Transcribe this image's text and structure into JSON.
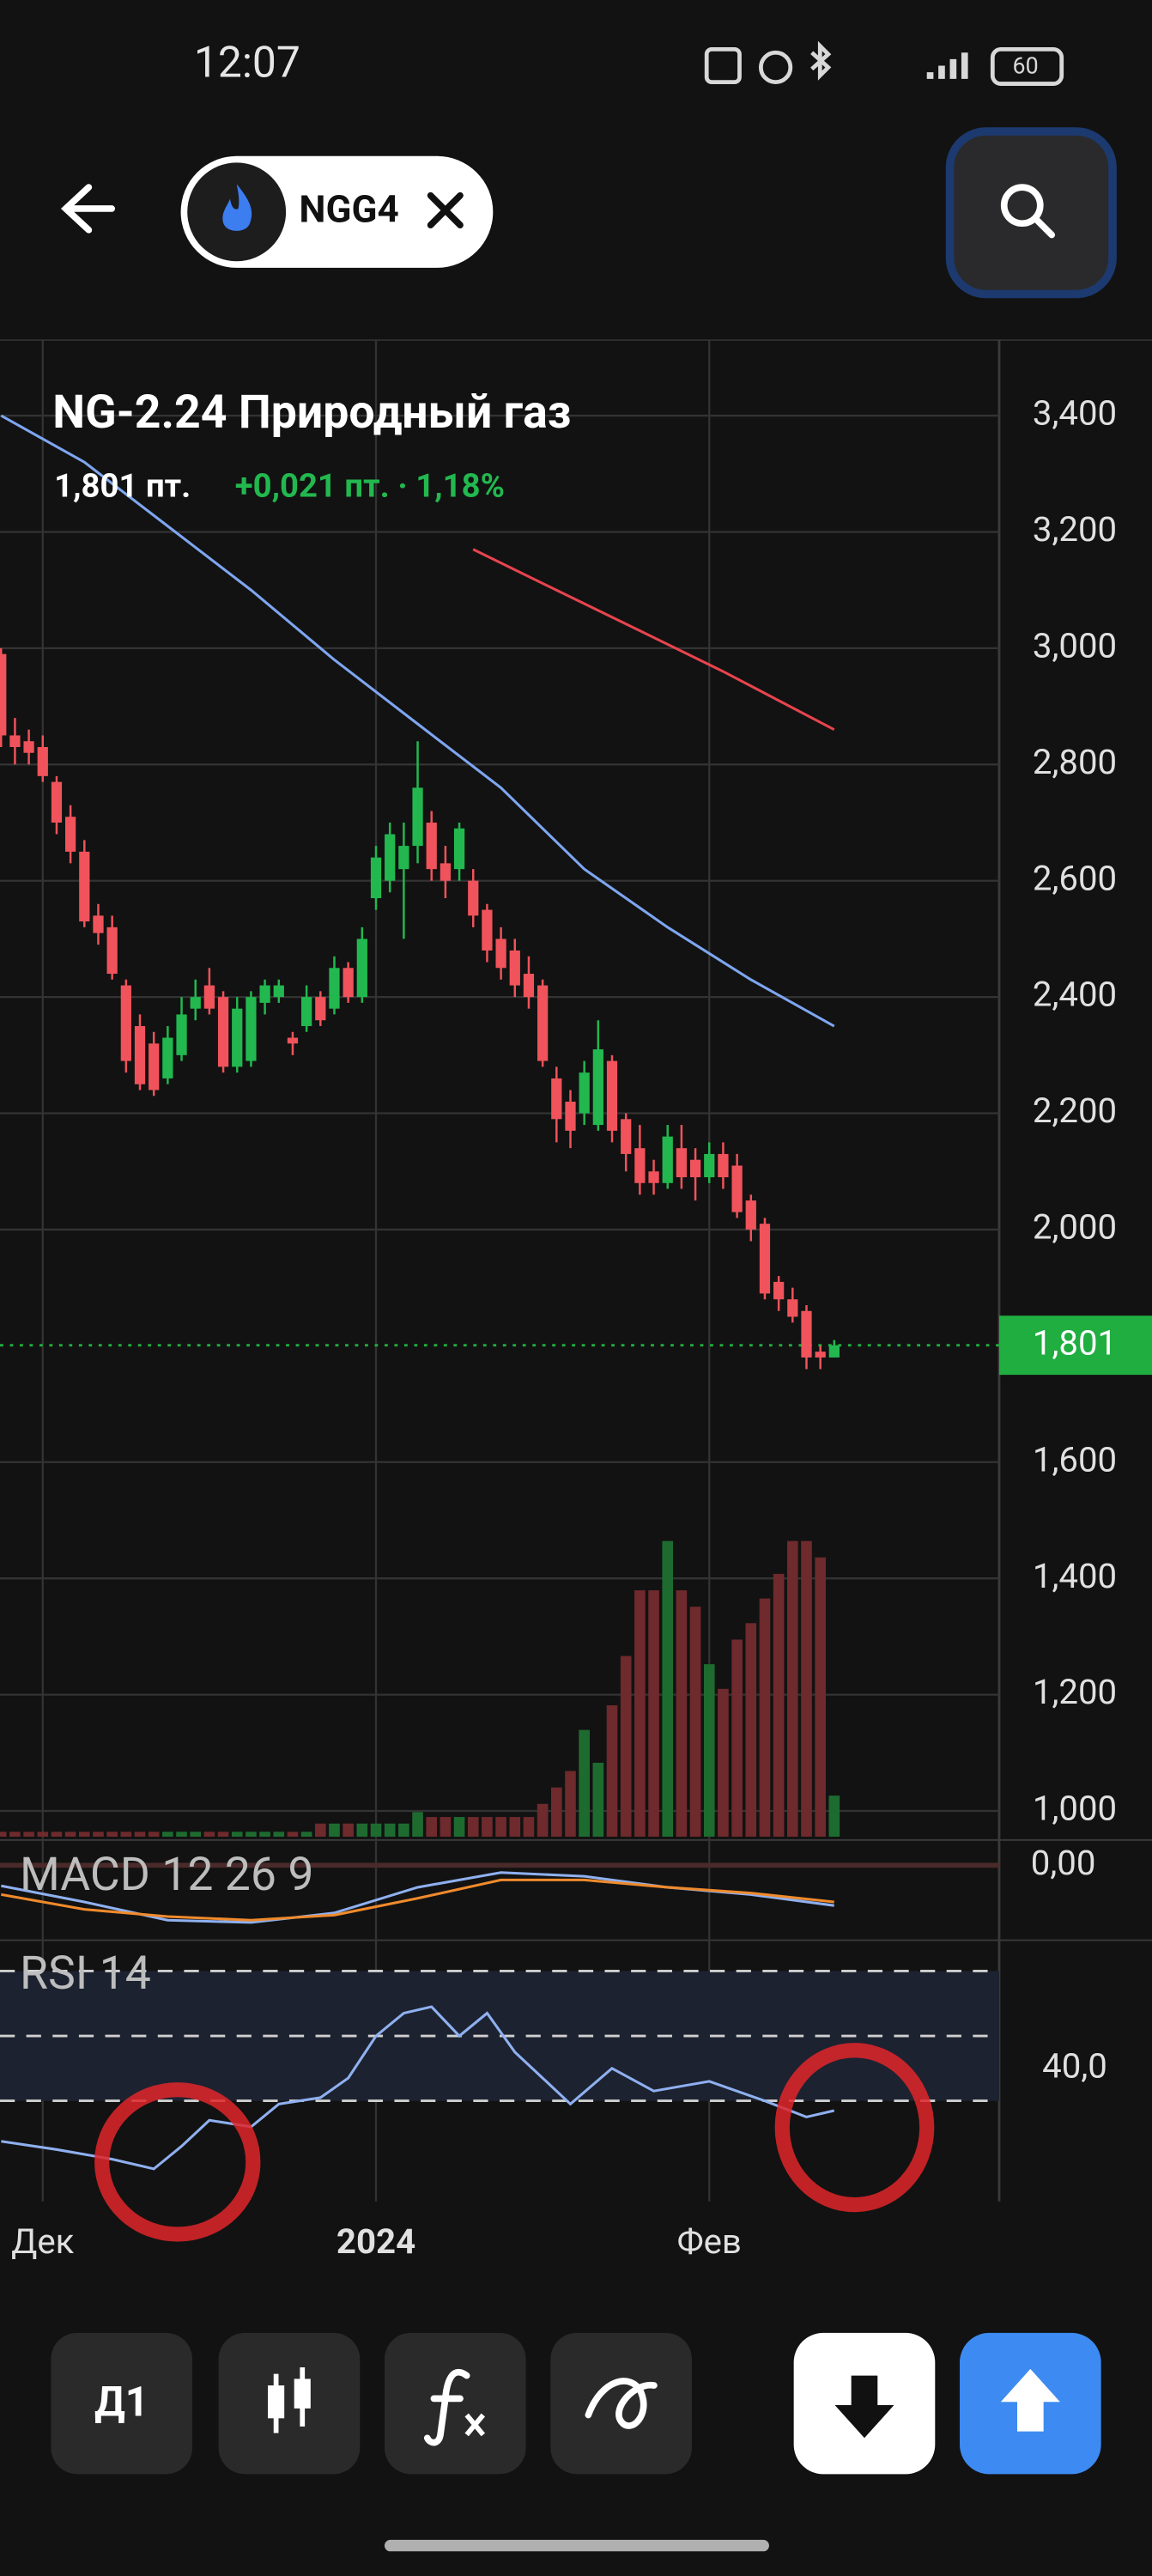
{
  "status_bar": {
    "time": "12:07",
    "battery": "60"
  },
  "header": {
    "ticker": "NGG4"
  },
  "toolbar": {
    "interval": "Д1"
  },
  "chart_data": {
    "type": "candlestick",
    "title": "NG-2.24 Природный газ",
    "price_text": "1,801 пт.",
    "change_text": "+0,021 пт. · 1,18%",
    "categories": [
      null,
      null,
      null,
      "Дек",
      null,
      null,
      null,
      null,
      null,
      null,
      null,
      null,
      null,
      null,
      null,
      null,
      null,
      null,
      null,
      null,
      null,
      null,
      null,
      null,
      null,
      null,
      null,
      "2024",
      null,
      null,
      null,
      null,
      null,
      null,
      null,
      null,
      null,
      null,
      null,
      null,
      null,
      null,
      null,
      null,
      null,
      null,
      null,
      null,
      null,
      null,
      null,
      "Фев",
      null,
      null,
      null,
      null,
      null,
      null,
      null,
      null,
      null
    ],
    "open": [
      2.99,
      2.85,
      2.84,
      2.83,
      2.77,
      2.71,
      2.65,
      2.54,
      2.52,
      2.42,
      2.35,
      2.32,
      2.26,
      2.3,
      2.38,
      2.42,
      2.4,
      2.28,
      2.29,
      2.39,
      2.4,
      2.33,
      2.35,
      2.4,
      2.38,
      2.45,
      2.4,
      2.57,
      2.6,
      2.62,
      2.66,
      2.7,
      2.63,
      2.62,
      2.6,
      2.55,
      2.5,
      2.48,
      2.44,
      2.42,
      2.26,
      2.22,
      2.2,
      2.18,
      2.29,
      2.19,
      2.14,
      2.1,
      2.08,
      2.14,
      2.12,
      2.09,
      2.13,
      2.11,
      2.05,
      2.01,
      1.91,
      1.88,
      1.86,
      1.79,
      1.78
    ],
    "high": [
      3.0,
      2.88,
      2.86,
      2.85,
      2.78,
      2.73,
      2.67,
      2.56,
      2.54,
      2.43,
      2.37,
      2.34,
      2.35,
      2.4,
      2.43,
      2.45,
      2.41,
      2.4,
      2.41,
      2.43,
      2.43,
      2.34,
      2.42,
      2.41,
      2.47,
      2.46,
      2.52,
      2.66,
      2.7,
      2.7,
      2.84,
      2.72,
      2.66,
      2.7,
      2.62,
      2.56,
      2.52,
      2.5,
      2.47,
      2.43,
      2.28,
      2.24,
      2.29,
      2.36,
      2.3,
      2.2,
      2.18,
      2.12,
      2.18,
      2.18,
      2.14,
      2.15,
      2.15,
      2.13,
      2.06,
      2.02,
      1.92,
      1.9,
      1.87,
      1.8,
      1.81
    ],
    "low": [
      2.83,
      2.8,
      2.8,
      2.77,
      2.68,
      2.63,
      2.52,
      2.49,
      2.43,
      2.27,
      2.24,
      2.23,
      2.25,
      2.29,
      2.36,
      2.37,
      2.27,
      2.27,
      2.28,
      2.37,
      2.39,
      2.3,
      2.34,
      2.35,
      2.37,
      2.39,
      2.39,
      2.55,
      2.58,
      2.5,
      2.63,
      2.6,
      2.57,
      2.6,
      2.52,
      2.46,
      2.43,
      2.4,
      2.38,
      2.28,
      2.15,
      2.14,
      2.18,
      2.17,
      2.15,
      2.1,
      2.06,
      2.06,
      2.07,
      2.07,
      2.05,
      2.08,
      2.07,
      2.02,
      1.98,
      1.88,
      1.86,
      1.84,
      1.76,
      1.76,
      1.78
    ],
    "close": [
      2.85,
      2.83,
      2.82,
      2.78,
      2.7,
      2.65,
      2.53,
      2.51,
      2.44,
      2.29,
      2.25,
      2.24,
      2.33,
      2.37,
      2.4,
      2.38,
      2.28,
      2.38,
      2.4,
      2.42,
      2.42,
      2.32,
      2.4,
      2.36,
      2.45,
      2.4,
      2.5,
      2.64,
      2.68,
      2.66,
      2.76,
      2.62,
      2.6,
      2.69,
      2.54,
      2.48,
      2.45,
      2.42,
      2.4,
      2.29,
      2.19,
      2.17,
      2.27,
      2.31,
      2.17,
      2.13,
      2.08,
      2.08,
      2.16,
      2.09,
      2.09,
      2.13,
      2.09,
      2.03,
      2.0,
      1.89,
      1.88,
      1.85,
      1.78,
      1.78,
      1.801
    ],
    "volume": [
      3,
      3,
      3,
      3,
      3,
      3,
      3,
      3,
      3,
      3,
      3,
      3,
      3,
      3,
      3,
      3,
      3,
      3,
      3,
      3,
      3,
      3,
      3,
      8,
      8,
      8,
      8,
      8,
      8,
      8,
      15,
      12,
      12,
      12,
      12,
      12,
      12,
      12,
      12,
      20,
      30,
      40,
      65,
      45,
      80,
      110,
      150,
      150,
      180,
      150,
      140,
      105,
      90,
      120,
      130,
      145,
      160,
      180,
      180,
      170,
      25
    ],
    "up_color": "#22b84f",
    "down_color": "#f0535b",
    "up_volume_color": "#1e6b30",
    "down_volume_color": "#6e2a2c",
    "moving_averages": [
      {
        "color": "#7ea6f0",
        "x": [
          0,
          6,
          12,
          18,
          24,
          30,
          36,
          42,
          48,
          54,
          60
        ],
        "values": [
          3.4,
          3.32,
          3.21,
          3.1,
          2.98,
          2.87,
          2.76,
          2.62,
          2.52,
          2.43,
          2.35
        ]
      },
      {
        "color": "#e8444e",
        "x": [
          34,
          40,
          46,
          52,
          60
        ],
        "values": [
          3.17,
          3.1,
          3.03,
          2.96,
          2.86
        ]
      }
    ],
    "ylim": [
      0.95,
      3.53
    ],
    "yticks": [
      {
        "value": 3.4,
        "label": "3,400"
      },
      {
        "value": 3.2,
        "label": "3,200"
      },
      {
        "value": 3.0,
        "label": "3,000"
      },
      {
        "value": 2.8,
        "label": "2,800"
      },
      {
        "value": 2.6,
        "label": "2,600"
      },
      {
        "value": 2.4,
        "label": "2,400"
      },
      {
        "value": 2.2,
        "label": "2,200"
      },
      {
        "value": 2.0,
        "label": "2,000"
      },
      {
        "value": 1.6,
        "label": "1,600"
      },
      {
        "value": 1.4,
        "label": "1,400"
      },
      {
        "value": 1.2,
        "label": "1,200"
      },
      {
        "value": 1.0,
        "label": "1,000"
      }
    ],
    "last_price": {
      "value": 1.801,
      "label": "1,801"
    },
    "last_price_color": "#1fae3f",
    "grid": true,
    "macd": {
      "label": "MACD 12 26 9",
      "ylim": [
        -0.1,
        0.03
      ],
      "yticks": [
        {
          "value": 0,
          "label": "0,00"
        }
      ],
      "series": [
        {
          "color": "#8fb0f0",
          "x": [
            0,
            6,
            12,
            18,
            24,
            30,
            36,
            42,
            48,
            54,
            60
          ],
          "values": [
            -0.028,
            -0.05,
            -0.075,
            -0.078,
            -0.065,
            -0.03,
            -0.01,
            -0.015,
            -0.03,
            -0.04,
            -0.055
          ]
        },
        {
          "color": "#f08a2c",
          "x": [
            0,
            6,
            12,
            18,
            24,
            30,
            36,
            42,
            48,
            54,
            60
          ],
          "values": [
            -0.04,
            -0.06,
            -0.07,
            -0.075,
            -0.068,
            -0.045,
            -0.02,
            -0.02,
            -0.03,
            -0.038,
            -0.05
          ]
        }
      ]
    },
    "rsi": {
      "label": "RSI 14",
      "ylim": [
        0,
        79
      ],
      "yticks": [
        {
          "value": 40,
          "label": "40,0"
        }
      ],
      "levels": [
        30,
        50,
        70
      ],
      "color": "#8fb0f0",
      "x": [
        0,
        4,
        8,
        11,
        13,
        15,
        18,
        20,
        23,
        25,
        27,
        29,
        31,
        33,
        35,
        37,
        39,
        41,
        44,
        47,
        51,
        55,
        58,
        60
      ],
      "values": [
        17.5,
        15,
        12,
        9,
        16,
        24,
        22,
        29,
        31,
        37,
        50,
        57,
        59,
        50,
        57,
        45,
        37,
        29,
        40,
        33,
        36,
        30,
        25,
        27
      ]
    }
  }
}
